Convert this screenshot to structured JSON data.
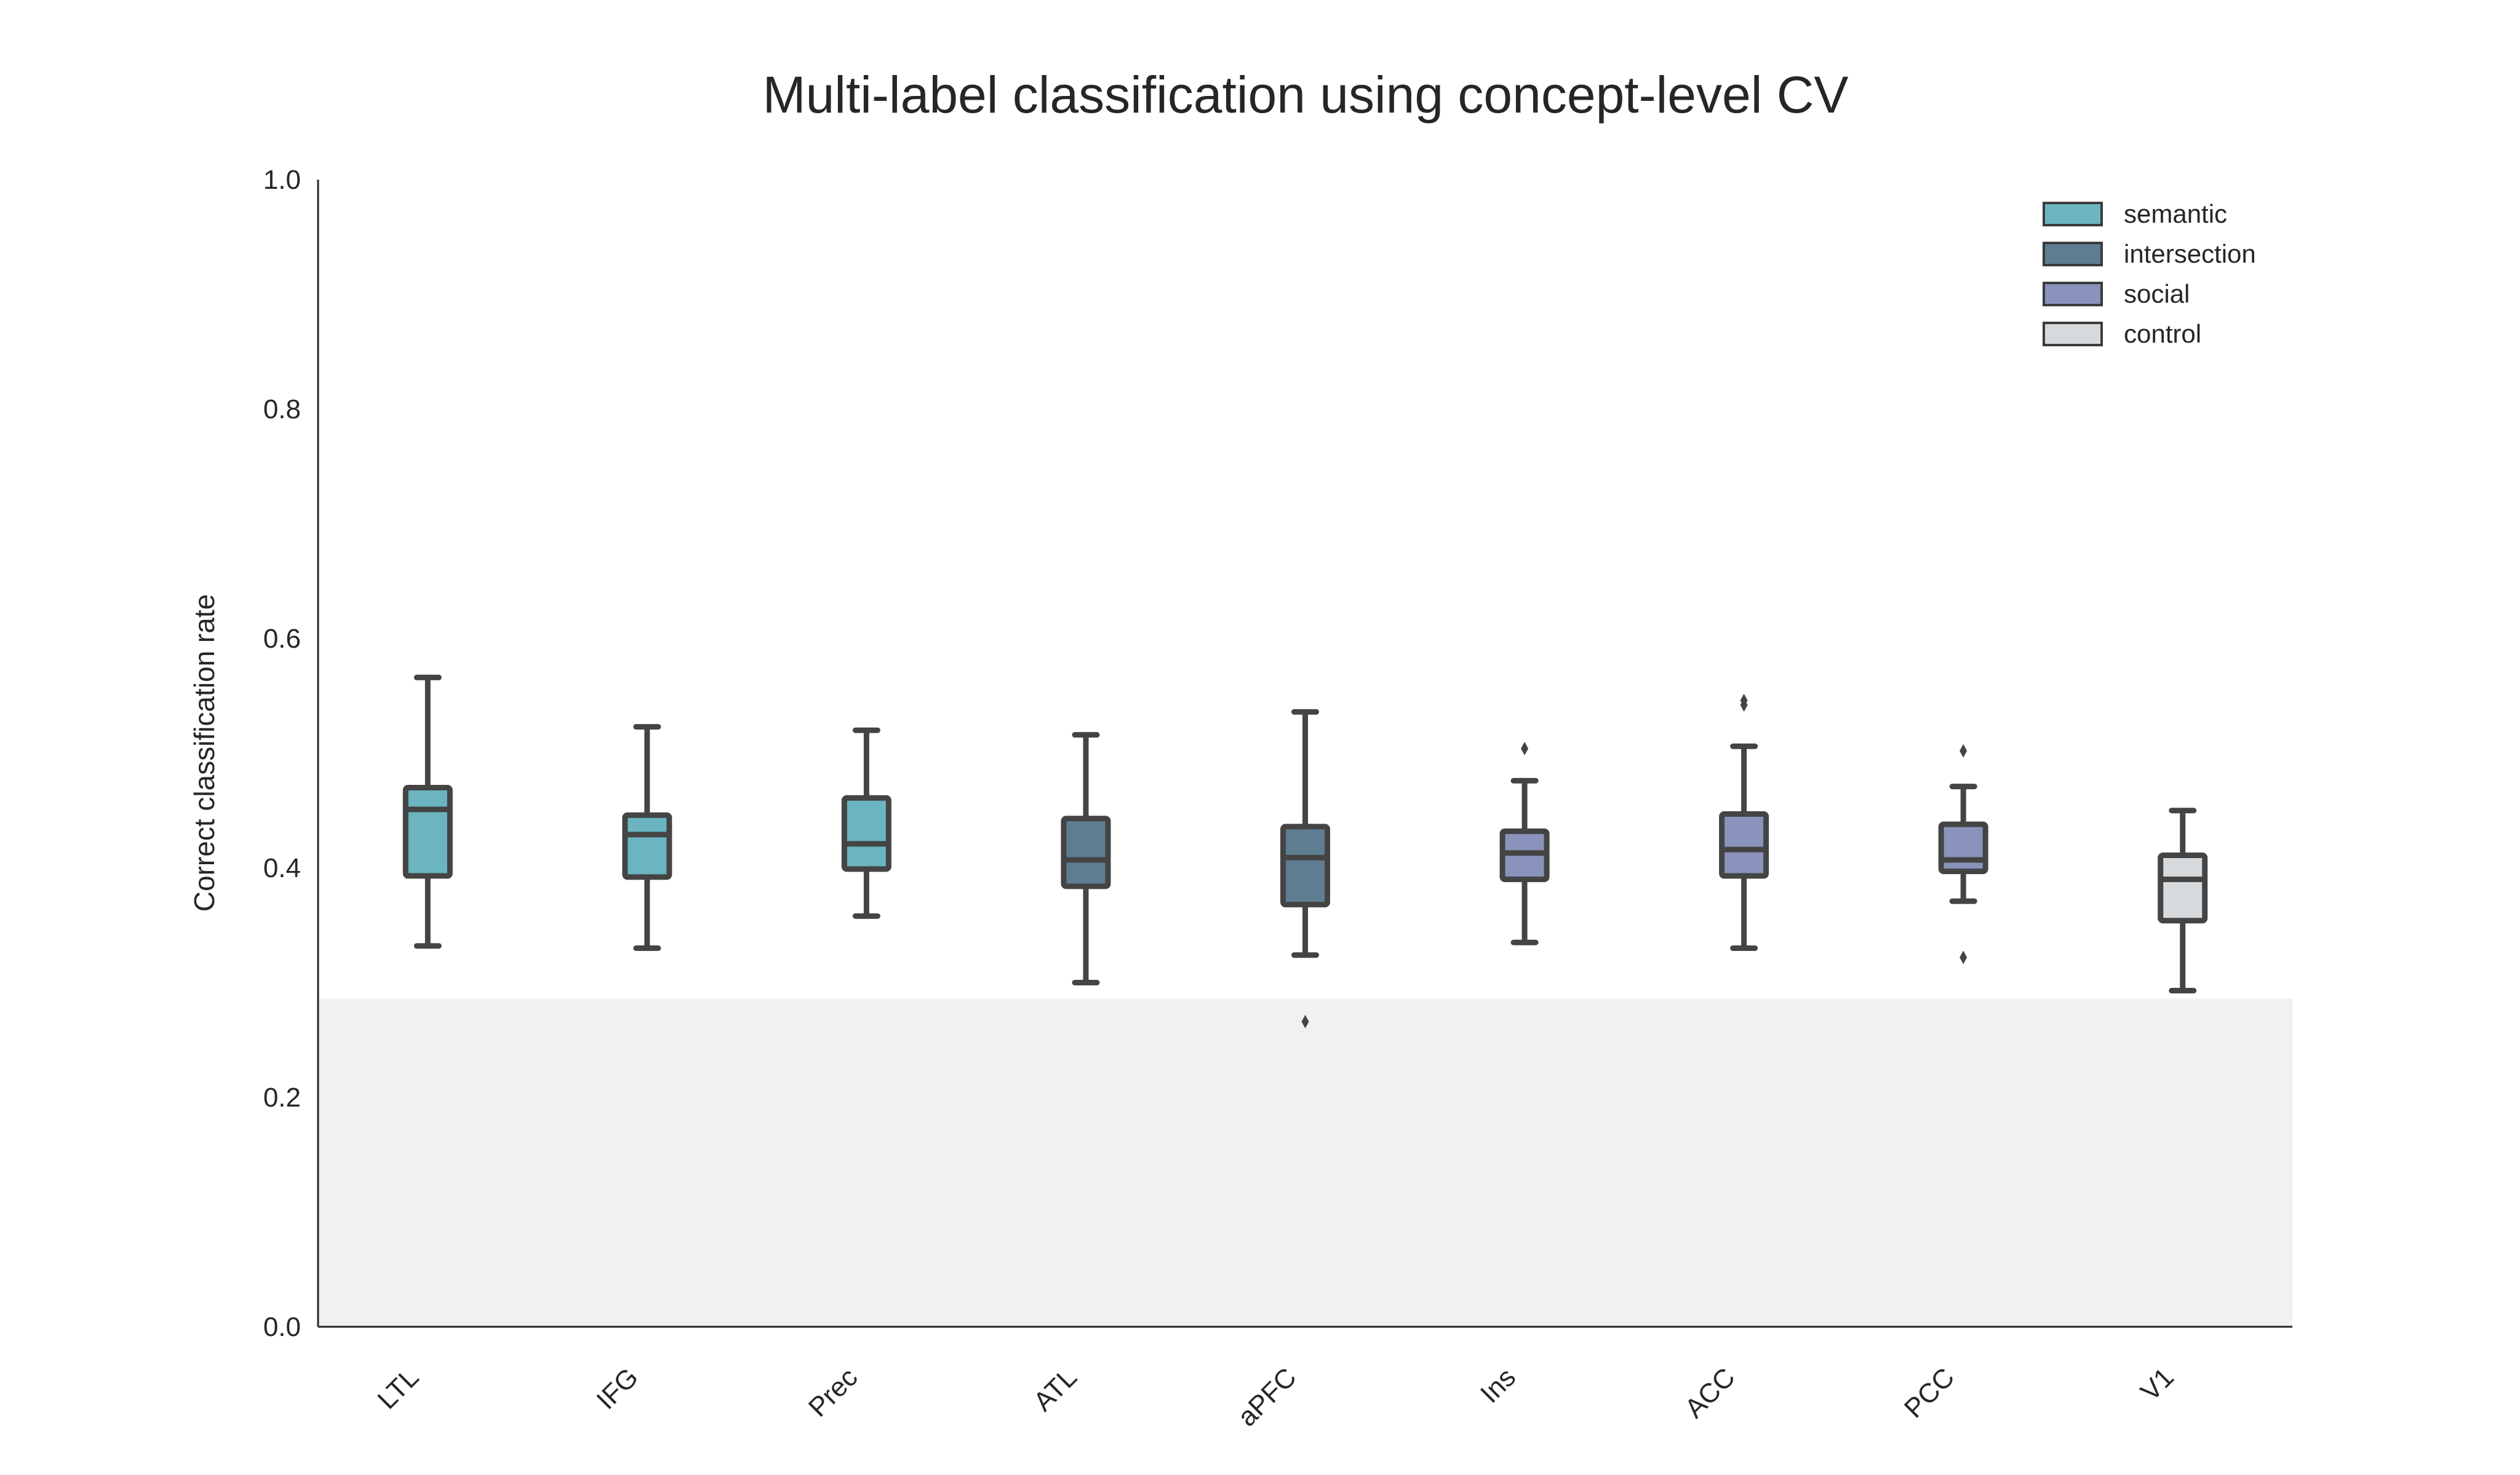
{
  "chart_data": {
    "type": "box",
    "title": "Multi-label classification using concept-level CV",
    "xlabel": "",
    "ylabel": "Correct classification rate",
    "ylim": [
      0,
      1.0
    ],
    "yticks": [
      "0.0",
      "0.2",
      "0.4",
      "0.6",
      "0.8",
      "1.0"
    ],
    "chance_band": [
      0,
      0.286
    ],
    "grid": false,
    "legend_position": "top-right",
    "groups": [
      {
        "name": "semantic",
        "color": "#6ab5c0"
      },
      {
        "name": "intersection",
        "color": "#5f7d91"
      },
      {
        "name": "social",
        "color": "#8a93bb"
      },
      {
        "name": "control",
        "color": "#d7dadd"
      }
    ],
    "boxes": [
      {
        "category": "LTL",
        "group": "semantic",
        "whisker_low": 0.332,
        "q1": 0.393,
        "median": 0.451,
        "q3": 0.47,
        "whisker_high": 0.566,
        "outliers": []
      },
      {
        "category": "IFG",
        "group": "semantic",
        "whisker_low": 0.33,
        "q1": 0.392,
        "median": 0.429,
        "q3": 0.446,
        "whisker_high": 0.523,
        "outliers": []
      },
      {
        "category": "Prec",
        "group": "semantic",
        "whisker_low": 0.358,
        "q1": 0.399,
        "median": 0.421,
        "q3": 0.461,
        "whisker_high": 0.52,
        "outliers": []
      },
      {
        "category": "ATL",
        "group": "intersection",
        "whisker_low": 0.3,
        "q1": 0.384,
        "median": 0.407,
        "q3": 0.443,
        "whisker_high": 0.516,
        "outliers": []
      },
      {
        "category": "aPFC",
        "group": "intersection",
        "whisker_low": 0.324,
        "q1": 0.368,
        "median": 0.409,
        "q3": 0.436,
        "whisker_high": 0.536,
        "outliers": [
          0.266
        ]
      },
      {
        "category": "Ins",
        "group": "social",
        "whisker_low": 0.335,
        "q1": 0.39,
        "median": 0.413,
        "q3": 0.432,
        "whisker_high": 0.476,
        "outliers": [
          0.504
        ]
      },
      {
        "category": "ACC",
        "group": "social",
        "whisker_low": 0.33,
        "q1": 0.393,
        "median": 0.416,
        "q3": 0.447,
        "whisker_high": 0.506,
        "outliers": [
          0.542,
          0.546
        ]
      },
      {
        "category": "PCC",
        "group": "social",
        "whisker_low": 0.371,
        "q1": 0.397,
        "median": 0.407,
        "q3": 0.438,
        "whisker_high": 0.471,
        "outliers": [
          0.322,
          0.502
        ]
      },
      {
        "category": "V1",
        "group": "control",
        "whisker_low": 0.293,
        "q1": 0.354,
        "median": 0.39,
        "q3": 0.411,
        "whisker_high": 0.45,
        "outliers": []
      }
    ]
  }
}
